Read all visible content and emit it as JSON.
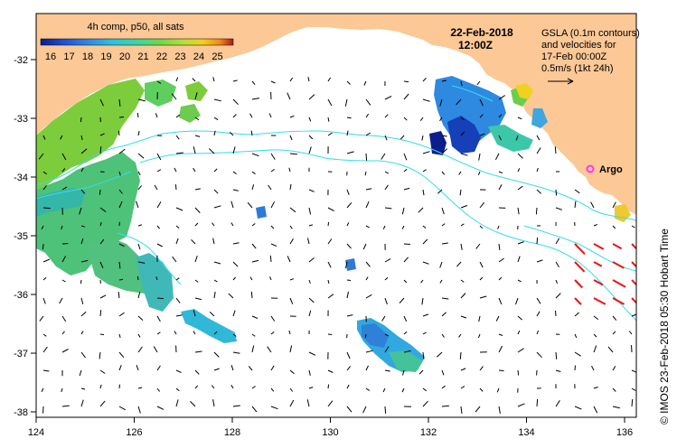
{
  "colorbar": {
    "title": "4h comp, p50, all sats",
    "tick_labels": [
      "16",
      "17",
      "18",
      "19",
      "20",
      "21",
      "22",
      "23",
      "24",
      "25"
    ],
    "colors": [
      "#0a1e8c",
      "#1f50d2",
      "#2e8ae6",
      "#2fc0df",
      "#3ad6a8",
      "#6fd84a",
      "#b3e03a",
      "#f0d021",
      "#f08a1a",
      "#b01818"
    ]
  },
  "header": {
    "date": "22-Feb-2018",
    "time": "12:00Z"
  },
  "legend": {
    "lines": [
      "GSLA (0.1m contours)",
      "and velocities for",
      "17-Feb 00:00Z",
      "0.5m/s (1kt 24h)"
    ]
  },
  "argo": {
    "label": "Argo",
    "marker_color": "#ff33ff"
  },
  "credit": "© IMOS 23-Feb-2018 05:30 Hobart Time",
  "axes": {
    "x_ticks": [
      "124",
      "126",
      "128",
      "130",
      "132",
      "134",
      "136"
    ],
    "y_ticks": [
      "-32",
      "-33",
      "-34",
      "-35",
      "-36",
      "-37",
      "-38"
    ]
  },
  "colors": {
    "land": "#fbc896",
    "contour": "#33ddee",
    "vector": "#000000",
    "vector_strong": "#ee1111"
  }
}
